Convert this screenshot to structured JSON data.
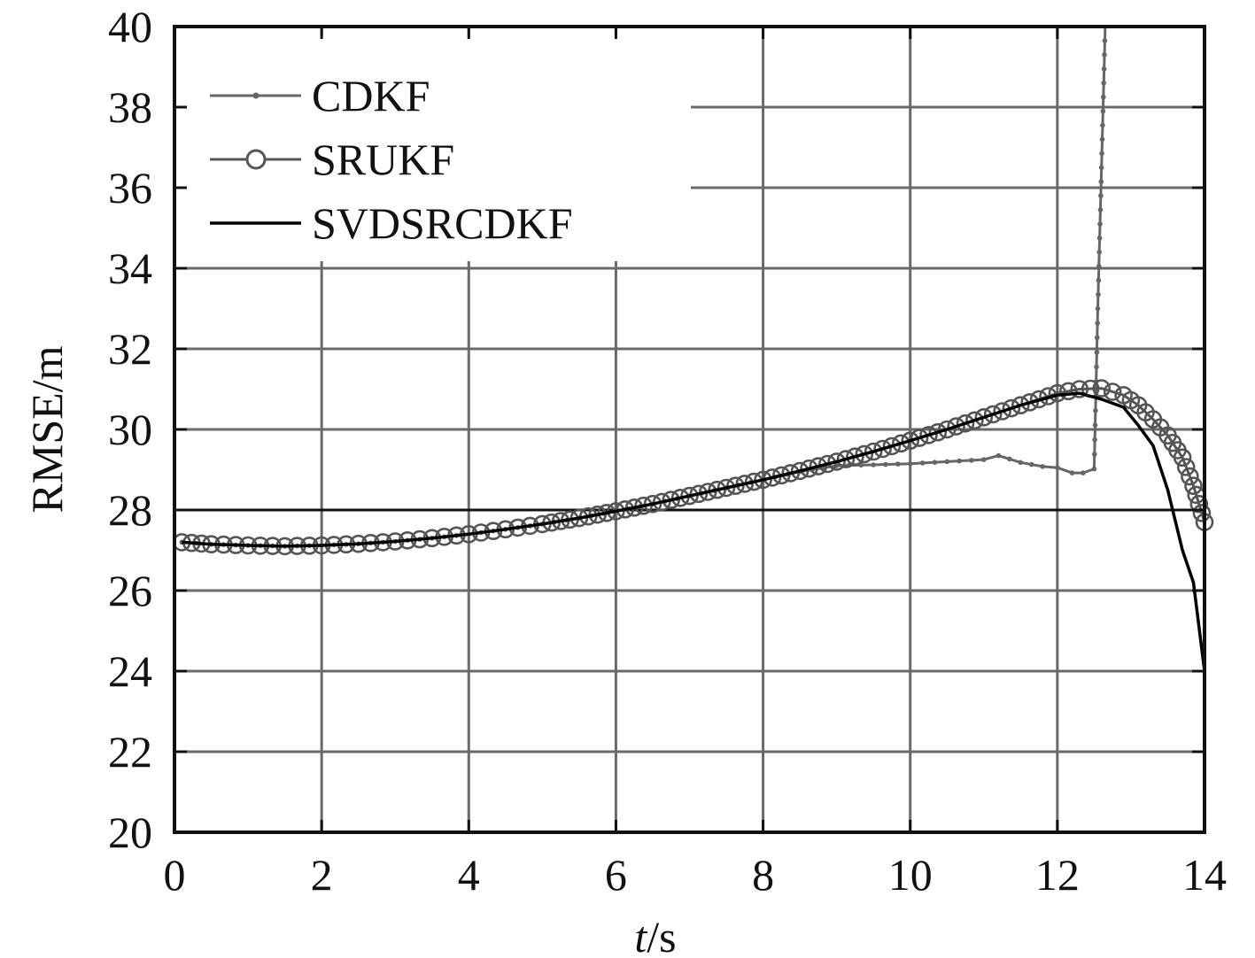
{
  "chart_data": {
    "type": "line",
    "title": "",
    "xlabel": {
      "italic": "t",
      "rest": "/s"
    },
    "ylabel": "RMSE/m",
    "xlim": [
      0,
      14
    ],
    "ylim": [
      20,
      40
    ],
    "xticks": [
      0,
      2,
      4,
      6,
      8,
      10,
      12,
      14
    ],
    "yticks": [
      20,
      22,
      24,
      26,
      28,
      30,
      32,
      34,
      36,
      38,
      40
    ],
    "xtick_labels": [
      "0",
      "2",
      "4",
      "6",
      "8",
      "10",
      "12",
      "14"
    ],
    "ytick_labels": [
      "20",
      "22",
      "24",
      "26",
      "28",
      "30",
      "32",
      "34",
      "36",
      "38",
      "40"
    ],
    "grid": true,
    "legend_position": "top-left",
    "series": [
      {
        "name": "CDKF",
        "color": "#666666",
        "marker": "dot",
        "x": [
          0.1,
          0.5,
          1.0,
          1.5,
          2.0,
          2.5,
          3.0,
          3.5,
          4.0,
          4.5,
          5.0,
          5.5,
          6.0,
          6.5,
          7.0,
          7.5,
          8.0,
          8.5,
          9.0,
          9.5,
          10.0,
          10.5,
          11.0,
          11.2,
          11.5,
          11.8,
          12.0,
          12.2,
          12.35,
          12.5,
          12.55,
          12.65
        ],
        "y": [
          27.2,
          27.15,
          27.12,
          27.1,
          27.12,
          27.16,
          27.22,
          27.3,
          27.4,
          27.52,
          27.65,
          27.8,
          27.97,
          28.15,
          28.35,
          28.55,
          28.75,
          28.95,
          29.1,
          29.12,
          29.15,
          29.2,
          29.25,
          29.35,
          29.18,
          29.08,
          29.05,
          28.92,
          28.92,
          29.02,
          33.0,
          40.0
        ]
      },
      {
        "name": "SRUKF",
        "color": "#555555",
        "marker": "circle",
        "x": [
          0.1,
          0.5,
          1.0,
          1.5,
          2.0,
          2.5,
          3.0,
          3.5,
          4.0,
          4.5,
          5.0,
          5.5,
          6.0,
          6.5,
          7.0,
          7.5,
          8.0,
          8.5,
          9.0,
          9.5,
          10.0,
          10.5,
          11.0,
          11.5,
          12.0,
          12.3,
          12.6,
          12.9,
          13.1,
          13.3,
          13.5,
          13.7,
          13.85,
          14.0
        ],
        "y": [
          27.2,
          27.15,
          27.12,
          27.1,
          27.12,
          27.16,
          27.22,
          27.3,
          27.4,
          27.52,
          27.65,
          27.8,
          27.97,
          28.15,
          28.35,
          28.55,
          28.75,
          28.97,
          29.2,
          29.45,
          29.72,
          30.0,
          30.3,
          30.6,
          30.9,
          31.0,
          31.02,
          30.85,
          30.6,
          30.25,
          29.85,
          29.3,
          28.6,
          27.7
        ]
      },
      {
        "name": "SVDSRCDKF",
        "color": "#000000",
        "marker": "none",
        "x": [
          0.1,
          0.5,
          1.0,
          1.5,
          2.0,
          2.5,
          3.0,
          3.5,
          4.0,
          4.5,
          5.0,
          5.5,
          6.0,
          6.5,
          7.0,
          7.5,
          8.0,
          8.5,
          9.0,
          9.5,
          10.0,
          10.5,
          11.0,
          11.5,
          12.0,
          12.3,
          12.6,
          12.9,
          13.1,
          13.3,
          13.5,
          13.7,
          13.85,
          14.0
        ],
        "y": [
          27.2,
          27.15,
          27.12,
          27.1,
          27.12,
          27.16,
          27.22,
          27.3,
          27.4,
          27.52,
          27.65,
          27.8,
          27.97,
          28.15,
          28.35,
          28.55,
          28.75,
          28.97,
          29.2,
          29.45,
          29.72,
          30.0,
          30.3,
          30.6,
          30.85,
          30.9,
          30.75,
          30.55,
          30.1,
          29.6,
          28.5,
          27.0,
          26.2,
          24.0
        ]
      }
    ]
  }
}
